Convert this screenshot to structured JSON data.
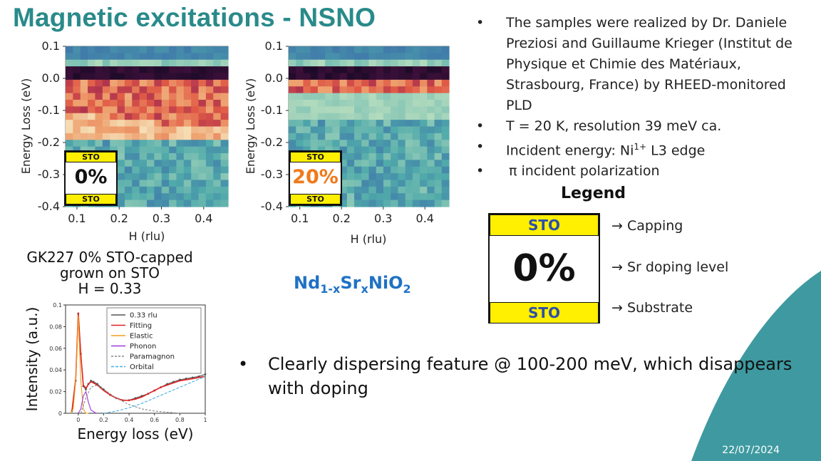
{
  "slide": {
    "title": "Magnetic excitations - NSNO",
    "date": "22/07/2024",
    "accent_color": "#2a8a8a",
    "corner_color": "#3e9aa0"
  },
  "heatmaps": {
    "y_tick_labels": [
      "0.1",
      "0.0",
      "-0.1",
      "-0.2",
      "-0.3",
      "-0.4"
    ],
    "x_tick_labels": [
      "0.1",
      "0.2",
      "0.3",
      "0.4"
    ],
    "ylabel": "Energy Loss (eV)",
    "xlabel": "H (rlu)",
    "panels": [
      {
        "capping": "STO",
        "doping": "0%",
        "substrate": "STO",
        "doping_color": "#111111"
      },
      {
        "capping": "STO",
        "doping": "20%",
        "substrate": "STO",
        "doping_color": "#f07a1a"
      }
    ]
  },
  "sample_caption": {
    "line1": "GK227 0% STO-capped",
    "line2": "grown on STO",
    "line3": "H = 0.33"
  },
  "formula": {
    "a": "Nd",
    "sub1": "1-x",
    "b": "Sr",
    "sub2": "x",
    "c": "NiO",
    "sub3": "2"
  },
  "bullets": {
    "items": [
      "The samples were realized by Dr. Daniele Preziosi and Guillaume Krieger (Institut de Physique et Chimie des Matériaux, Strasbourg, France) by RHEED-monitored PLD",
      "T = 20 K, resolution 39 meV ca.",
      "Incident energy: Ni",
      "π incident polarization"
    ],
    "incident_sup": "1+",
    "incident_tail": " L3 edge",
    "bullet_char": "•"
  },
  "legend": {
    "title": "Legend",
    "capping": "STO",
    "doping": "0%",
    "substrate": "STO",
    "note_capping": "→ Capping",
    "note_doping": "→ Sr doping level",
    "note_substrate": "→ Substrate"
  },
  "bottom_bullet": "Clearly dispersing feature @ 100-200 meV, which disappears with doping",
  "chart_data": {
    "type": "line",
    "xlabel": "Energy loss (eV)",
    "ylabel": "Intensity (a.u.)",
    "xlim": [
      -0.1,
      1.0
    ],
    "ylim": [
      0,
      0.1
    ],
    "x_ticks": [
      "0",
      "0.2",
      "0.4",
      "0.6",
      "0.8",
      "1"
    ],
    "y_ticks": [
      "0",
      "0.02",
      "0.04",
      "0.06",
      "0.08",
      "0.1"
    ],
    "legend": "top-right",
    "series": [
      {
        "name": "0.33 rlu",
        "color": "#555555",
        "x": [
          -0.05,
          -0.02,
          0.0,
          0.02,
          0.04,
          0.06,
          0.08,
          0.1,
          0.12,
          0.15,
          0.2,
          0.25,
          0.3,
          0.35,
          0.4,
          0.45,
          0.5,
          0.55,
          0.6,
          0.65,
          0.7,
          0.75,
          0.8,
          0.85,
          0.9,
          0.95,
          1.0
        ],
        "y": [
          0.002,
          0.03,
          0.092,
          0.055,
          0.025,
          0.022,
          0.027,
          0.03,
          0.029,
          0.027,
          0.022,
          0.017,
          0.014,
          0.012,
          0.012,
          0.014,
          0.016,
          0.018,
          0.021,
          0.024,
          0.027,
          0.029,
          0.031,
          0.032,
          0.033,
          0.034,
          0.036
        ]
      },
      {
        "name": "Fitting",
        "color": "#e02020",
        "x": [
          -0.05,
          -0.02,
          0.0,
          0.02,
          0.04,
          0.06,
          0.08,
          0.1,
          0.12,
          0.15,
          0.2,
          0.25,
          0.3,
          0.35,
          0.4,
          0.45,
          0.5,
          0.55,
          0.6,
          0.65,
          0.7,
          0.75,
          0.8,
          0.85,
          0.9,
          0.95,
          1.0
        ],
        "y": [
          0.002,
          0.032,
          0.093,
          0.054,
          0.026,
          0.023,
          0.027,
          0.029,
          0.028,
          0.026,
          0.021,
          0.017,
          0.014,
          0.012,
          0.012,
          0.013,
          0.015,
          0.018,
          0.021,
          0.024,
          0.026,
          0.028,
          0.03,
          0.031,
          0.032,
          0.033,
          0.034
        ]
      },
      {
        "name": "Elastic",
        "color": "#f0a020",
        "x": [
          -0.06,
          -0.04,
          -0.02,
          0.0,
          0.02,
          0.04,
          0.06,
          0.08
        ],
        "y": [
          0.0,
          0.004,
          0.03,
          0.09,
          0.03,
          0.004,
          0.0,
          0.0
        ]
      },
      {
        "name": "Phonon",
        "color": "#9a3ad8",
        "x": [
          0.0,
          0.02,
          0.04,
          0.06,
          0.08,
          0.1,
          0.14
        ],
        "y": [
          0.0,
          0.004,
          0.016,
          0.02,
          0.01,
          0.003,
          0.0
        ]
      },
      {
        "name": "Paramagnon",
        "color": "#888888",
        "x": [
          0.02,
          0.06,
          0.1,
          0.15,
          0.2,
          0.3,
          0.4,
          0.5,
          0.6,
          0.7,
          0.8
        ],
        "y": [
          0.0,
          0.014,
          0.024,
          0.026,
          0.022,
          0.014,
          0.008,
          0.004,
          0.002,
          0.001,
          0.0
        ]
      },
      {
        "name": "Orbital",
        "color": "#40b0e0",
        "x": [
          0.2,
          0.3,
          0.4,
          0.5,
          0.6,
          0.7,
          0.8,
          0.9,
          1.0
        ],
        "y": [
          0.0,
          0.002,
          0.005,
          0.009,
          0.014,
          0.019,
          0.024,
          0.029,
          0.034
        ]
      }
    ]
  }
}
